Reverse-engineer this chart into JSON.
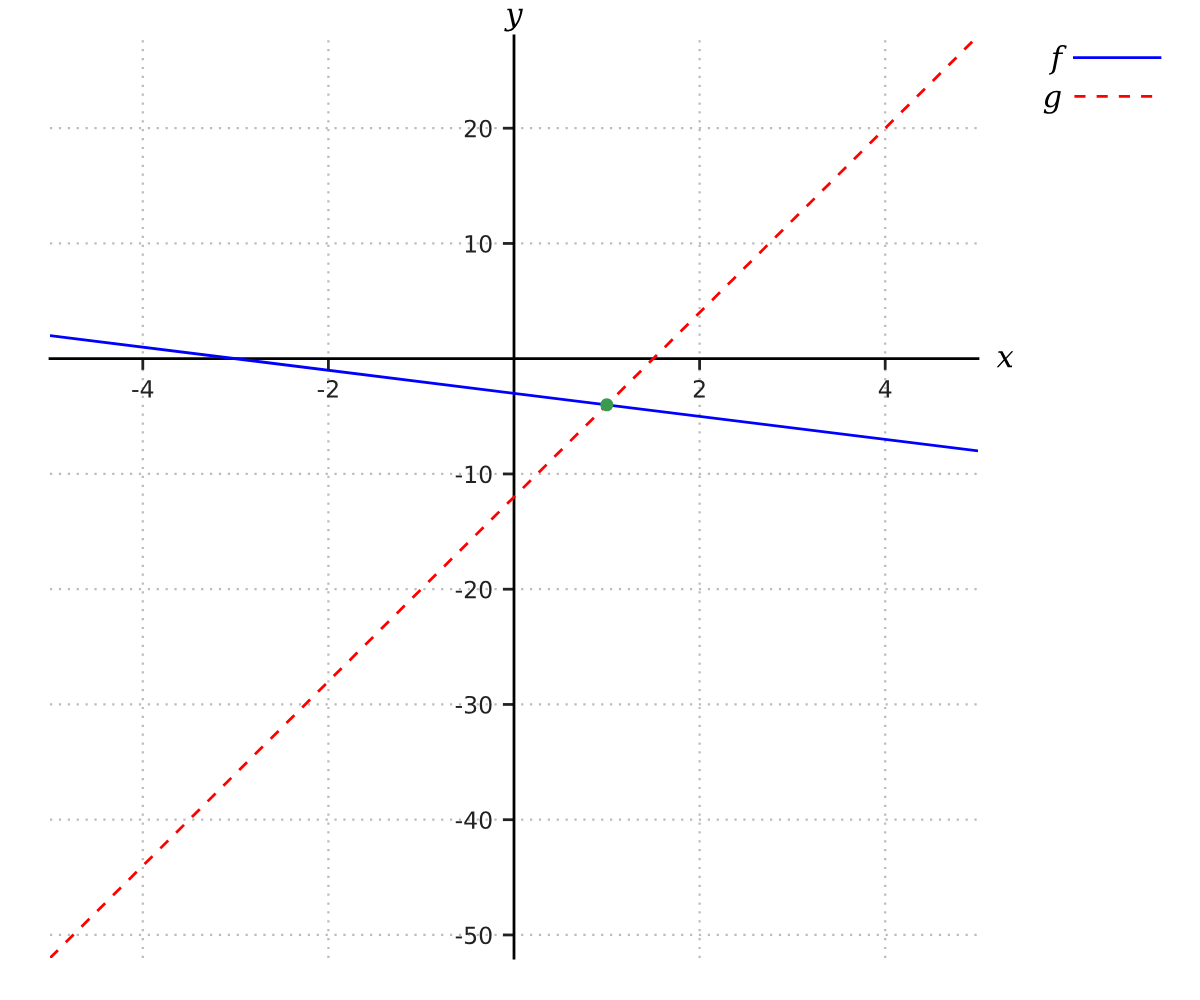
{
  "chart_data": {
    "type": "line",
    "xlabel": "x",
    "ylabel": "y",
    "xlim": [
      -5,
      5
    ],
    "ylim": [
      -52,
      28
    ],
    "xticks": [
      -4,
      -2,
      2,
      4
    ],
    "yticks": [
      -50,
      -40,
      -30,
      -20,
      -10,
      10,
      20
    ],
    "grid": true,
    "legend": "top right",
    "series": [
      {
        "name": "f",
        "color": "#0000ff",
        "line_style": "solid",
        "x": [
          -5,
          5
        ],
        "values": [
          2,
          -8
        ]
      },
      {
        "name": "g",
        "color": "#ff0000",
        "line_style": "dashed",
        "x": [
          -5,
          5
        ],
        "values": [
          -52,
          28
        ]
      },
      {
        "type": "scatter",
        "color": "#3a9a50",
        "marker": "circle",
        "x": [
          1
        ],
        "values": [
          -4
        ]
      }
    ]
  }
}
